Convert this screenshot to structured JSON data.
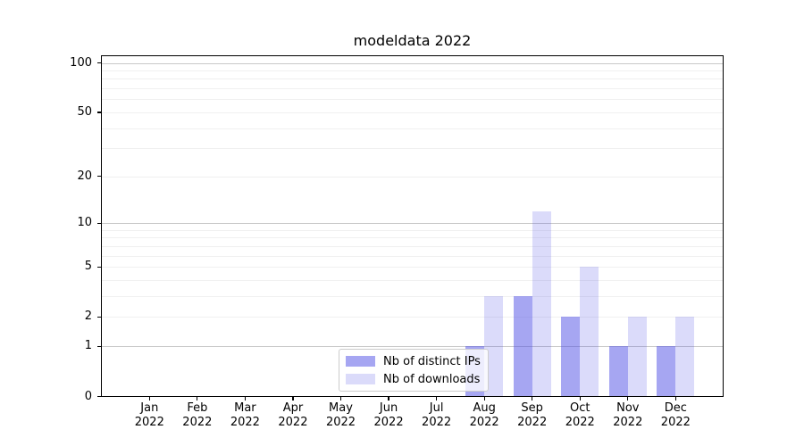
{
  "title": "modeldata 2022",
  "chart_data": {
    "type": "bar",
    "title": "modeldata 2022",
    "categories": [
      "Jan",
      "Feb",
      "Mar",
      "Apr",
      "May",
      "Jun",
      "Jul",
      "Aug",
      "Sep",
      "Oct",
      "Nov",
      "Dec"
    ],
    "category_year": "2022",
    "series": [
      {
        "name": "Nb of distinct IPs",
        "fill": "rgba(77,77,230,0.5)",
        "color_hex": "#a6a6f2",
        "values": [
          0,
          0,
          0,
          0,
          0,
          0,
          0,
          1,
          3,
          2,
          1,
          1
        ]
      },
      {
        "name": "Nb of downloads",
        "fill": "rgba(77,77,230,0.2)",
        "color_hex": "#dbdbf9",
        "values": [
          0,
          0,
          0,
          0,
          0,
          0,
          0,
          3,
          12,
          5,
          2,
          2
        ]
      }
    ],
    "yscale": "log1p",
    "ylim": [
      0,
      112
    ],
    "y_tick_labels": [
      0,
      1,
      2,
      5,
      10,
      20,
      50,
      100
    ],
    "y_major_grid": [
      1,
      10,
      100
    ],
    "y_minor_grid": [
      2,
      3,
      4,
      5,
      6,
      7,
      8,
      9,
      20,
      30,
      40,
      50,
      60,
      70,
      80,
      90
    ],
    "grid": true,
    "legend_position": "lower center",
    "colors": {
      "background": "#ffffff",
      "spine": "#000000",
      "major_grid": "#c8c8c8",
      "minor_grid": "#f0f0f0",
      "text": "#000000"
    }
  },
  "legend": {
    "items": [
      {
        "label": "Nb of distinct IPs",
        "color": "rgba(77,77,230,0.5)"
      },
      {
        "label": "Nb of downloads",
        "color": "rgba(77,77,230,0.2)"
      }
    ]
  }
}
